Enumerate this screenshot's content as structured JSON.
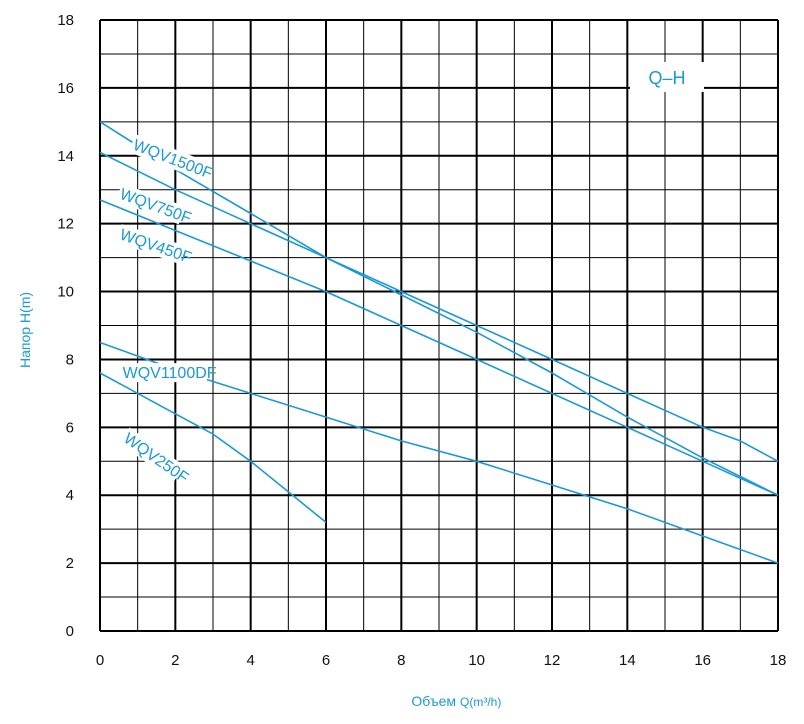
{
  "chart_data": {
    "type": "line",
    "title": "Q–H",
    "xlabel": "Объем",
    "xlabel_unit": "Q(m³/h)",
    "ylabel": "Напор H(m)",
    "xlim": [
      0,
      18
    ],
    "ylim": [
      0,
      18
    ],
    "x_ticks": [
      "0",
      "2",
      "4",
      "6",
      "8",
      "10",
      "12",
      "14",
      "16",
      "18"
    ],
    "y_ticks": [
      "0",
      "2",
      "4",
      "6",
      "8",
      "10",
      "12",
      "14",
      "16",
      "18"
    ],
    "grid": true,
    "colors": {
      "series": "#1a9ad6",
      "grid": "#000000",
      "text": "#1a9ad6"
    },
    "series": [
      {
        "name": "WQV1500F",
        "x": [
          0,
          2,
          4,
          6,
          8,
          10,
          12,
          14,
          16,
          17,
          18
        ],
        "y": [
          15.0,
          13.6,
          12.3,
          11.0,
          10.0,
          9.0,
          8.0,
          7.0,
          6.0,
          5.6,
          5.0
        ]
      },
      {
        "name": "WQV750F",
        "x": [
          0,
          2,
          4,
          6,
          8,
          10,
          12,
          14,
          16,
          18
        ],
        "y": [
          14.1,
          13.0,
          12.0,
          11.0,
          9.9,
          8.8,
          7.6,
          6.3,
          5.1,
          4.0
        ]
      },
      {
        "name": "WQV450F",
        "x": [
          0,
          2,
          4,
          6,
          8,
          10,
          12,
          14,
          16,
          18
        ],
        "y": [
          12.7,
          11.8,
          10.9,
          10.0,
          9.0,
          8.0,
          7.0,
          6.0,
          5.0,
          4.0
        ]
      },
      {
        "name": "WQV1100DF",
        "x": [
          0,
          2,
          4,
          6,
          8,
          10,
          12,
          14,
          16,
          18
        ],
        "y": [
          8.5,
          7.7,
          7.0,
          6.3,
          5.6,
          5.0,
          4.3,
          3.6,
          2.8,
          2.0
        ]
      },
      {
        "name": "WQV250F",
        "x": [
          0,
          1,
          2,
          3,
          4,
          5,
          6
        ],
        "y": [
          7.6,
          7.0,
          6.4,
          5.8,
          5.0,
          4.1,
          3.2
        ]
      }
    ]
  }
}
